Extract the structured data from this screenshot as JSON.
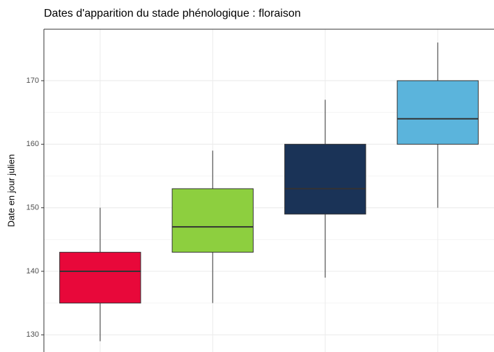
{
  "chart_data": {
    "type": "boxplot",
    "title": "Dates d'apparition du stade phénologique : floraison",
    "y_label": "Date en jour julien",
    "categories": [
      null,
      null,
      null,
      null
    ],
    "boxes": [
      {
        "min": 129,
        "q1": 135,
        "median": 140,
        "q3": 143,
        "max": 150,
        "color": "#e8083a"
      },
      {
        "min": 135,
        "q1": 143,
        "median": 147,
        "q3": 153,
        "max": 159,
        "color": "#8dcf3f"
      },
      {
        "min": 139,
        "q1": 149,
        "median": 153,
        "q3": 160,
        "max": 167,
        "color": "#1a3357"
      },
      {
        "min": 150,
        "q1": 160,
        "median": 164,
        "q3": 170,
        "max": 176,
        "color": "#5bb4dc"
      }
    ],
    "ylim": [
      127.3,
      178.1
    ],
    "yticks": [
      130,
      140,
      150,
      160,
      170
    ],
    "grid": true
  }
}
